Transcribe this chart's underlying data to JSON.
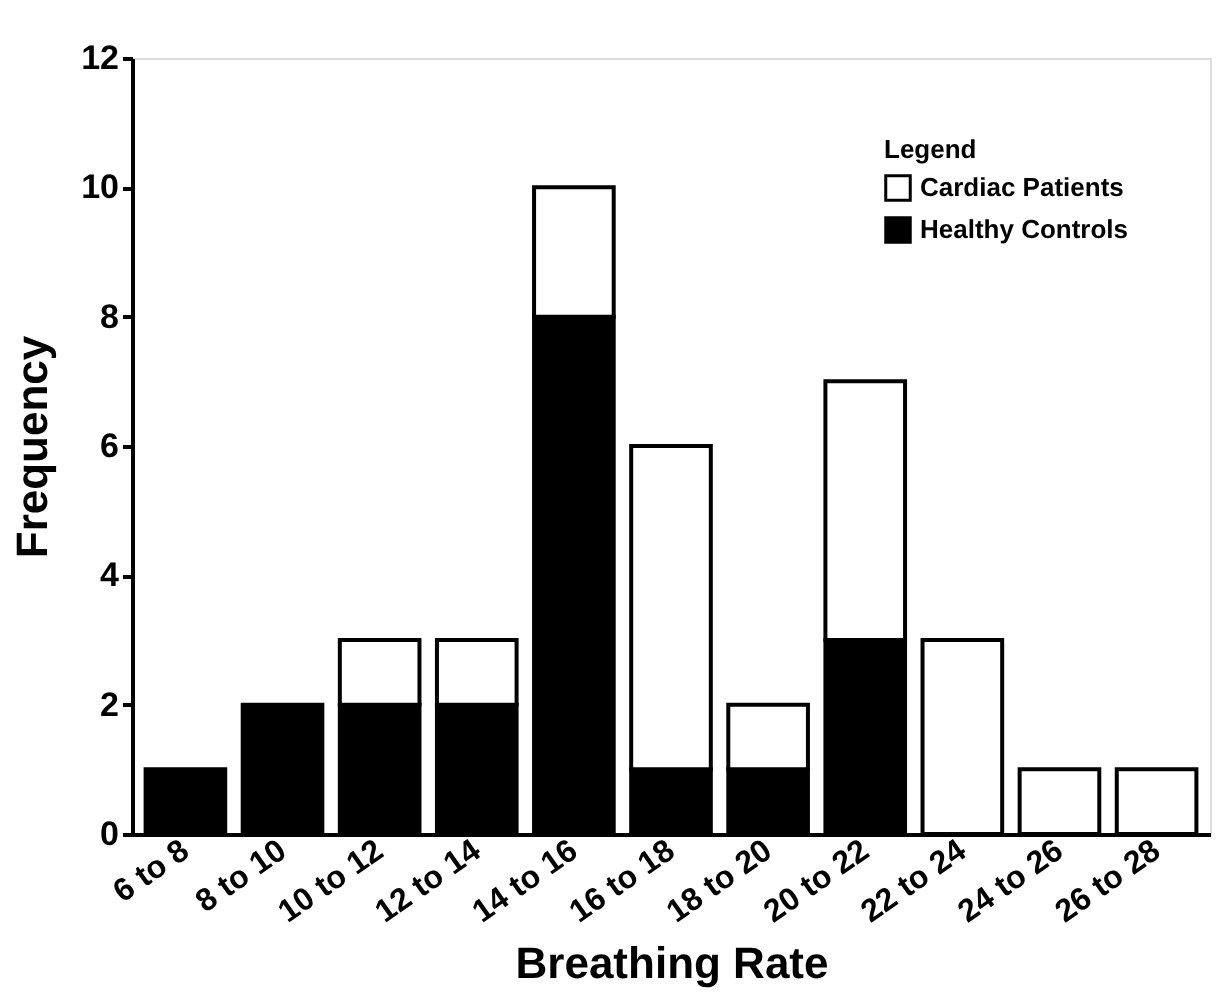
{
  "chart_data": {
    "type": "bar",
    "stacked": true,
    "xlabel": "Breathing Rate",
    "ylabel": "Frequency",
    "legend_title": "Legend",
    "legend": "top right",
    "categories": [
      "6 to 8",
      "8 to 10",
      "10 to 12",
      "12 to 14",
      "14 to 16",
      "16 to 18",
      "18 to 20",
      "20 to 22",
      "22 to 24",
      "24 to 26",
      "26 to 28"
    ],
    "series": [
      {
        "name": "Healthy Controls",
        "color": "#000000",
        "values": [
          1,
          2,
          2,
          2,
          8,
          1,
          1,
          3,
          0,
          0,
          0
        ]
      },
      {
        "name": "Cardiac Patients",
        "color": "#ffffff",
        "values": [
          0,
          0,
          1,
          1,
          2,
          5,
          1,
          4,
          3,
          1,
          1
        ]
      }
    ],
    "ylim": [
      0,
      12
    ],
    "yticks": [
      0,
      2,
      4,
      6,
      8,
      10,
      12
    ],
    "grid": false
  }
}
